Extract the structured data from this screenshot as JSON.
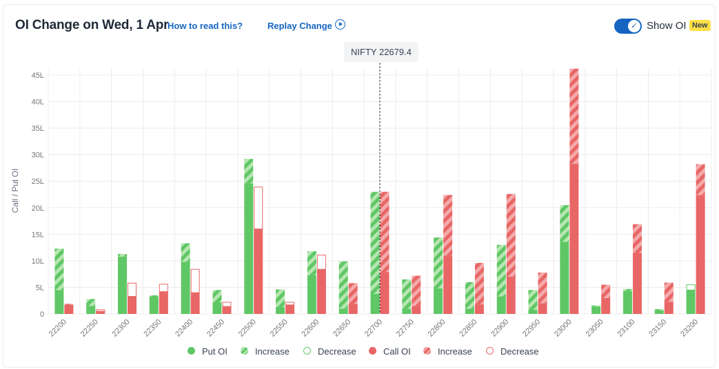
{
  "header": {
    "title": "OI Change on Wed, 1 Apr",
    "how_to_read": "How to read this?",
    "replay": "Replay Change",
    "show_oi": "Show OI",
    "new_badge": "New"
  },
  "tooltip": {
    "text": "NIFTY 22679.4"
  },
  "colors": {
    "put": "#5fc765",
    "put_light": "#b6e6b1",
    "call": "#e86666",
    "call_light": "#f5aaaa",
    "grid": "#ececec",
    "axis_text": "#757575"
  },
  "legend": {
    "put_oi": "Put OI",
    "put_increase": "Increase",
    "put_decrease": "Decrease",
    "call_oi": "Call OI",
    "call_increase": "Increase",
    "call_decrease": "Decrease"
  },
  "chart_data": {
    "type": "bar",
    "ylabel": "Call / Put OI",
    "yticks": [
      "0",
      "5L",
      "10L",
      "15L",
      "20L",
      "25L",
      "30L",
      "35L",
      "40L",
      "45L"
    ],
    "ylim": [
      0,
      46
    ],
    "grid": true,
    "spot_marker": {
      "x": "22700",
      "label": "NIFTY 22679.4"
    },
    "categories": [
      "22200",
      "22250",
      "22300",
      "22350",
      "22400",
      "22450",
      "22500",
      "22550",
      "22600",
      "22650",
      "22700",
      "22750",
      "22800",
      "22850",
      "22900",
      "22950",
      "23000",
      "23050",
      "23100",
      "23150",
      "23200"
    ],
    "put": [
      {
        "oi": 4.5,
        "increase": 7.8,
        "decrease": 0
      },
      {
        "oi": 1.5,
        "increase": 1.3,
        "decrease": 0
      },
      {
        "oi": 10.8,
        "increase": 0.5,
        "decrease": 0
      },
      {
        "oi": 3.3,
        "increase": 0.2,
        "decrease": 0
      },
      {
        "oi": 9.8,
        "increase": 3.5,
        "decrease": 0
      },
      {
        "oi": 2.2,
        "increase": 2.3,
        "decrease": 0
      },
      {
        "oi": 24.6,
        "increase": 4.6,
        "decrease": 0
      },
      {
        "oi": 1.3,
        "increase": 3.3,
        "decrease": 0
      },
      {
        "oi": 7.3,
        "increase": 4.5,
        "decrease": 0
      },
      {
        "oi": 1.0,
        "increase": 8.9,
        "decrease": 0
      },
      {
        "oi": 3.8,
        "increase": 19.2,
        "decrease": 0
      },
      {
        "oi": 1.0,
        "increase": 5.5,
        "decrease": 0
      },
      {
        "oi": 4.8,
        "increase": 9.6,
        "decrease": 0
      },
      {
        "oi": 1.0,
        "increase": 5.0,
        "decrease": 0
      },
      {
        "oi": 3.3,
        "increase": 9.7,
        "decrease": 0
      },
      {
        "oi": 0.8,
        "increase": 3.7,
        "decrease": 0
      },
      {
        "oi": 13.6,
        "increase": 6.9,
        "decrease": 0
      },
      {
        "oi": 1.4,
        "increase": 0.2,
        "decrease": 0
      },
      {
        "oi": 4.3,
        "increase": 0.4,
        "decrease": 0
      },
      {
        "oi": 0.7,
        "increase": 0.2,
        "decrease": 0
      },
      {
        "oi": 4.5,
        "increase": 0,
        "decrease": 1.0
      }
    ],
    "call": [
      {
        "oi": 1.7,
        "increase": 0.2,
        "decrease": 0
      },
      {
        "oi": 0.5,
        "increase": 0,
        "decrease": 0.3
      },
      {
        "oi": 3.3,
        "increase": 0,
        "decrease": 2.5
      },
      {
        "oi": 4.2,
        "increase": 0,
        "decrease": 1.4
      },
      {
        "oi": 4.0,
        "increase": 0,
        "decrease": 4.4
      },
      {
        "oi": 1.4,
        "increase": 0,
        "decrease": 0.8
      },
      {
        "oi": 16.0,
        "increase": 0,
        "decrease": 7.9
      },
      {
        "oi": 1.7,
        "increase": 0,
        "decrease": 0.5
      },
      {
        "oi": 8.4,
        "increase": 0,
        "decrease": 2.7
      },
      {
        "oi": 1.9,
        "increase": 3.9,
        "decrease": 0
      },
      {
        "oi": 7.9,
        "increase": 15.1,
        "decrease": 0
      },
      {
        "oi": 1.5,
        "increase": 5.7,
        "decrease": 0
      },
      {
        "oi": 11.0,
        "increase": 11.4,
        "decrease": 0
      },
      {
        "oi": 1.8,
        "increase": 7.8,
        "decrease": 0
      },
      {
        "oi": 7.0,
        "increase": 15.6,
        "decrease": 0
      },
      {
        "oi": 2.0,
        "increase": 5.8,
        "decrease": 0
      },
      {
        "oi": 28.3,
        "increase": 17.9,
        "decrease": 0
      },
      {
        "oi": 3.0,
        "increase": 2.5,
        "decrease": 0
      },
      {
        "oi": 11.5,
        "increase": 5.4,
        "decrease": 0
      },
      {
        "oi": 2.3,
        "increase": 3.6,
        "decrease": 0
      },
      {
        "oi": 22.4,
        "increase": 5.8,
        "decrease": 0
      }
    ]
  }
}
